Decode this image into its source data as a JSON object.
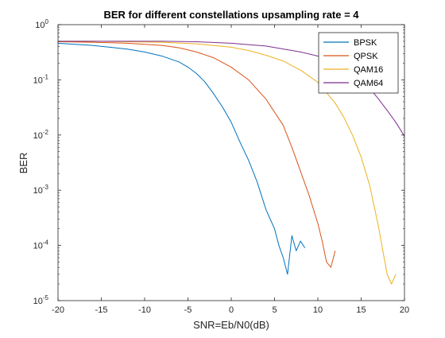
{
  "chart_data": {
    "type": "line",
    "title": "BER for different constellations upsampling rate = 4",
    "xlabel": "SNR=Eb/N0(dB)",
    "ylabel": "BER",
    "xlim": [
      -20,
      20
    ],
    "ylim": [
      1e-05,
      1
    ],
    "yscale": "log",
    "grid": false,
    "legend_position": "top-right",
    "x_ticks": [
      -20,
      -15,
      -10,
      -5,
      0,
      5,
      10,
      15,
      20
    ],
    "x_tick_labels": [
      "-20",
      "-15",
      "-10",
      "-5",
      "0",
      "5",
      "10",
      "15",
      "20"
    ],
    "y_ticks": [
      1e-05,
      0.0001,
      0.001,
      0.01,
      0.1,
      1
    ],
    "y_tick_labels": [
      {
        "base": "10",
        "exp": "-5"
      },
      {
        "base": "10",
        "exp": "-4"
      },
      {
        "base": "10",
        "exp": "-3"
      },
      {
        "base": "10",
        "exp": "-2"
      },
      {
        "base": "10",
        "exp": "-1"
      },
      {
        "base": "10",
        "exp": "0"
      }
    ],
    "series": [
      {
        "name": "BPSK",
        "color": "#0072BD",
        "x": [
          -20,
          -18,
          -16,
          -14,
          -12,
          -10,
          -8,
          -6,
          -5,
          -4,
          -3,
          -2,
          -1,
          0,
          1,
          2,
          3,
          4,
          4.5,
          5,
          5.5,
          6,
          6.5,
          7,
          7.5,
          8,
          8.5
        ],
        "y": [
          0.46,
          0.44,
          0.42,
          0.39,
          0.36,
          0.32,
          0.27,
          0.21,
          0.17,
          0.13,
          0.09,
          0.055,
          0.032,
          0.017,
          0.0075,
          0.0035,
          0.0014,
          0.00045,
          0.0003,
          0.0002,
          0.0001,
          6e-05,
          3e-05,
          0.00015,
          8e-05,
          0.00012,
          9e-05
        ]
      },
      {
        "name": "QPSK",
        "color": "#D95319",
        "x": [
          -20,
          -16,
          -12,
          -8,
          -6,
          -4,
          -2,
          0,
          2,
          4,
          6,
          7,
          8,
          9,
          10,
          10.5,
          11,
          11.5,
          12
        ],
        "y": [
          0.49,
          0.48,
          0.46,
          0.42,
          0.38,
          0.32,
          0.25,
          0.17,
          0.1,
          0.045,
          0.015,
          0.006,
          0.0022,
          0.0008,
          0.00025,
          0.00012,
          5e-05,
          4e-05,
          8e-05
        ]
      },
      {
        "name": "QAM16",
        "color": "#EDB120",
        "x": [
          -20,
          -16,
          -12,
          -8,
          -4,
          0,
          2,
          4,
          6,
          8,
          10,
          12,
          13,
          14,
          15,
          16,
          17,
          17.5,
          18,
          18.5,
          19
        ],
        "y": [
          0.5,
          0.5,
          0.49,
          0.48,
          0.45,
          0.39,
          0.34,
          0.28,
          0.22,
          0.15,
          0.09,
          0.038,
          0.021,
          0.01,
          0.004,
          0.0012,
          0.00022,
          8e-05,
          3e-05,
          2e-05,
          3e-05
        ]
      },
      {
        "name": "QAM64",
        "color": "#7E2F8E",
        "x": [
          -20,
          -16,
          -12,
          -8,
          -4,
          0,
          4,
          8,
          10,
          12,
          14,
          16,
          17,
          18,
          19,
          20
        ],
        "y": [
          0.5,
          0.5,
          0.5,
          0.5,
          0.49,
          0.46,
          0.41,
          0.32,
          0.27,
          0.2,
          0.13,
          0.07,
          0.045,
          0.028,
          0.017,
          0.0095
        ]
      }
    ]
  }
}
